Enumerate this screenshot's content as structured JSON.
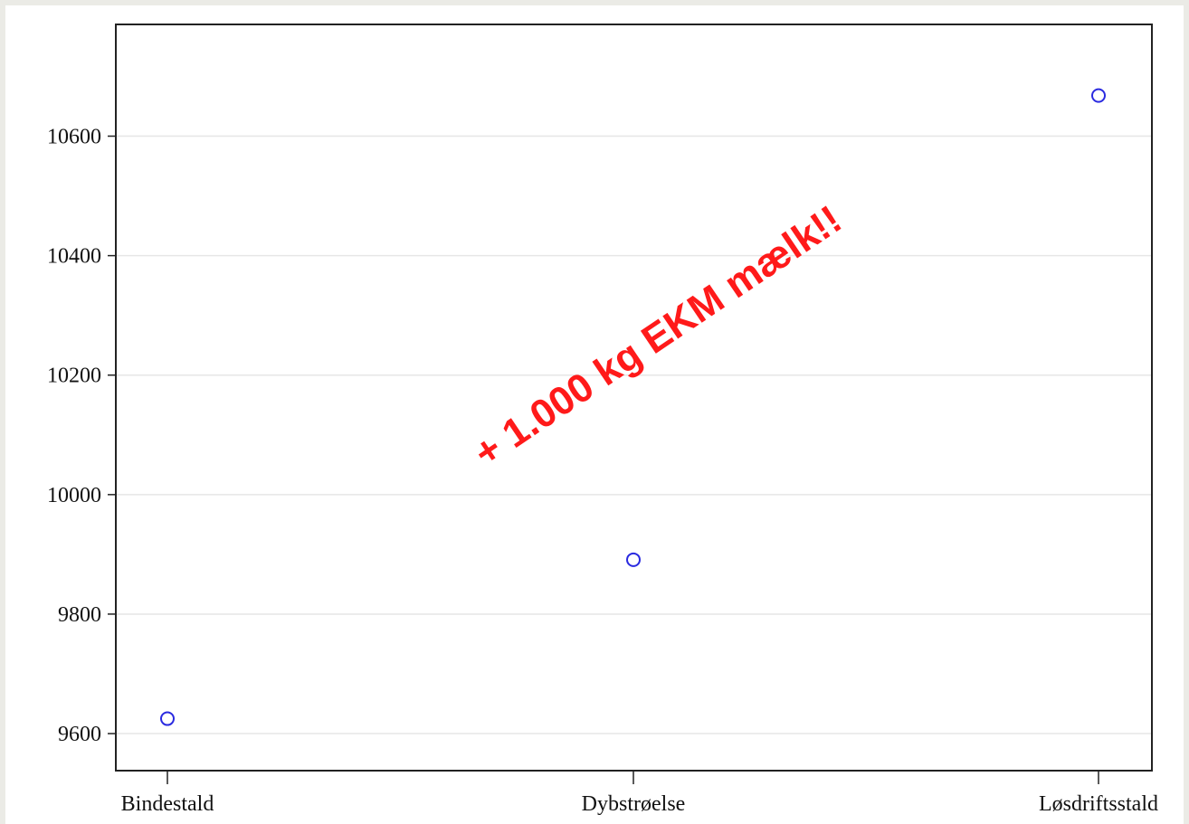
{
  "chart_data": {
    "type": "scatter",
    "title": "",
    "xlabel": "",
    "ylabel": "",
    "categories": [
      "Bindestald",
      "Dybstrøelse",
      "Løsdriftsstald"
    ],
    "series": [
      {
        "values": [
          9625,
          9891,
          10668
        ],
        "color": "#2a2ae0",
        "marker": "open-circle"
      }
    ],
    "yticks": [
      9600,
      9800,
      10000,
      10200,
      10400,
      10600
    ],
    "ylim": [
      9538,
      10787
    ],
    "grid": true,
    "annotation": {
      "text": "+ 1.000 kg EKM mælk!!",
      "color": "#ff1a1a"
    }
  }
}
